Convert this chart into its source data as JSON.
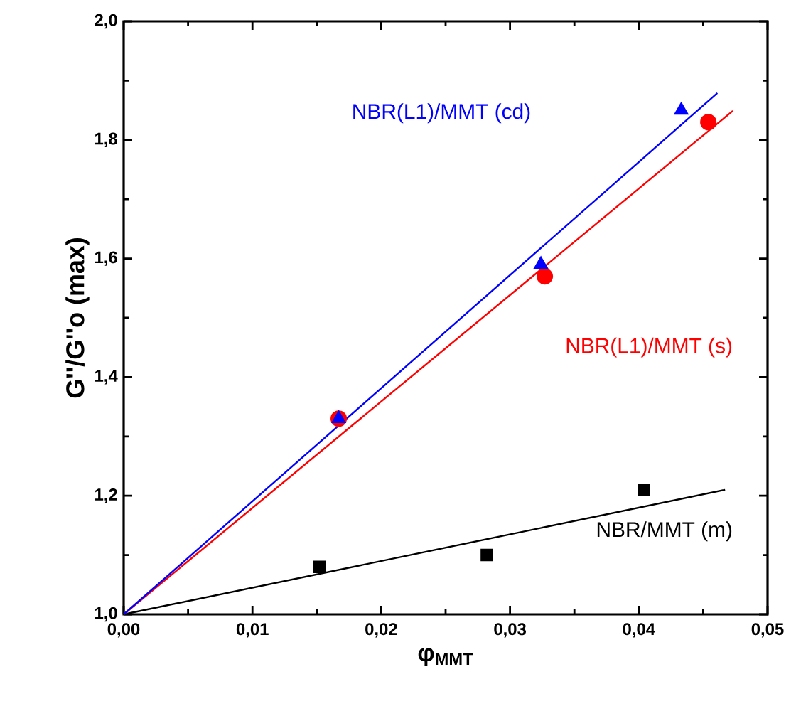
{
  "chart_data": {
    "type": "scatter",
    "xlabel": "φ$_{MMT}$",
    "ylabel": "G''/G''o (max)",
    "xlim": [
      0,
      0.05
    ],
    "ylim": [
      1.0,
      2.0
    ],
    "xticks": [
      {
        "value": 0,
        "label": "0,00"
      },
      {
        "value": 0.01,
        "label": "0,01"
      },
      {
        "value": 0.02,
        "label": "0,02"
      },
      {
        "value": 0.03,
        "label": "0,03"
      },
      {
        "value": 0.04,
        "label": "0,04"
      },
      {
        "value": 0.05,
        "label": "0,05"
      }
    ],
    "yticks": [
      {
        "value": 1.0,
        "label": "1,0"
      },
      {
        "value": 1.2,
        "label": "1,2"
      },
      {
        "value": 1.4,
        "label": "1,4"
      },
      {
        "value": 1.6,
        "label": "1,6"
      },
      {
        "value": 1.8,
        "label": "1,8"
      },
      {
        "value": 2.0,
        "label": "2,0"
      }
    ],
    "series": [
      {
        "name": "NBR/MMT (m)",
        "color": "#000000",
        "marker": "square",
        "x": [
          0.0152,
          0.0282,
          0.0404
        ],
        "values": [
          1.08,
          1.1,
          1.21
        ]
      },
      {
        "name": "NBR(L1)/MMT (s)",
        "color": "#ff0000",
        "marker": "circle",
        "x": [
          0.0167,
          0.0327,
          0.0454
        ],
        "values": [
          1.33,
          1.57,
          1.83
        ]
      },
      {
        "name": "NBR(L1)/MMT (cd)",
        "color": "#0000ff",
        "marker": "triangle",
        "x": [
          0.0167,
          0.0324,
          0.0433
        ],
        "values": [
          1.33,
          1.59,
          1.85
        ]
      },
      {
        "type": "line",
        "color": "#000000",
        "marker": "none",
        "x": [
          0,
          0.0467
        ],
        "values": [
          1.0,
          1.21
        ]
      },
      {
        "type": "line",
        "color": "#ff0000",
        "marker": "none",
        "x": [
          0,
          0.0473
        ],
        "values": [
          1.0,
          1.849
        ]
      },
      {
        "type": "line",
        "color": "#0000ff",
        "marker": "none",
        "x": [
          0,
          0.0461
        ],
        "values": [
          1.0,
          1.879
        ]
      }
    ]
  }
}
